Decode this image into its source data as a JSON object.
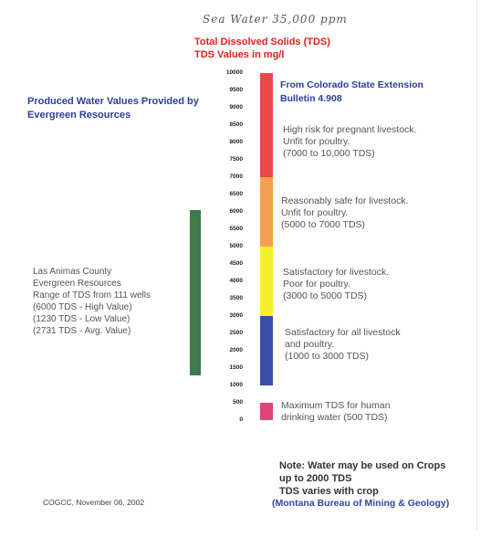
{
  "handwritten_note": "Sea Water   35,000 ppm",
  "title_line1": "Total Dissolved Solids (TDS)",
  "title_line2": "TDS Values in mg/l",
  "left_header": [
    "Produced Water Values Provided by",
    "Evergreen Resources"
  ],
  "right_header": [
    "From Colorado State Extension",
    "Bulletin 4.908"
  ],
  "scale_ticks": [
    "10000",
    "9500",
    "9000",
    "8500",
    "8000",
    "7500",
    "7000",
    "6500",
    "6000",
    "5500",
    "5000",
    "4500",
    "4000",
    "3500",
    "3000",
    "2500",
    "2000",
    "1500",
    "1000",
    "500",
    "0"
  ],
  "bands": [
    {
      "from": 7000,
      "to": 10000,
      "color": "#e64a4a",
      "text": [
        "High risk for pregnant livestock.",
        "Unfit for poultry.",
        "(7000 to 10,000 TDS)"
      ]
    },
    {
      "from": 5000,
      "to": 7000,
      "color": "#f5a04c",
      "text": [
        "Reasonably safe for livestock.",
        "Unfit for poultry.",
        "(5000 to 7000 TDS)"
      ]
    },
    {
      "from": 3000,
      "to": 5000,
      "color": "#f7ef2e",
      "text": [
        "Satisfactory for livestock.",
        "Poor for poultry.",
        "(3000 to 5000 TDS)"
      ]
    },
    {
      "from": 1000,
      "to": 3000,
      "color": "#3a4ea8",
      "text": [
        "Satisfactory for all livestock",
        "and poultry.",
        "(1000 to 3000 TDS)"
      ]
    },
    {
      "from": 0,
      "to": 500,
      "color": "#e0457a",
      "text": [
        "Maximum TDS for human",
        "drinking water  (500 TDS)"
      ]
    }
  ],
  "produced_water_range": {
    "low": 1230,
    "high": 6000,
    "color": "#3f7a4a"
  },
  "las_animas": [
    "Las Animas County",
    "Evergreen Resources",
    "Range of TDS from 111 wells",
    "(6000 TDS - High Value)",
    "(1230 TDS - Low Value)",
    "(2731 TDS - Avg. Value)"
  ],
  "note": [
    "Note: Water may be used on Crops",
    "up to 2000 TDS",
    "TDS varies with crop"
  ],
  "note_credit": "(Montana Bureau of Mining & Geology)",
  "footer": "COGCC, November 06, 2002"
}
